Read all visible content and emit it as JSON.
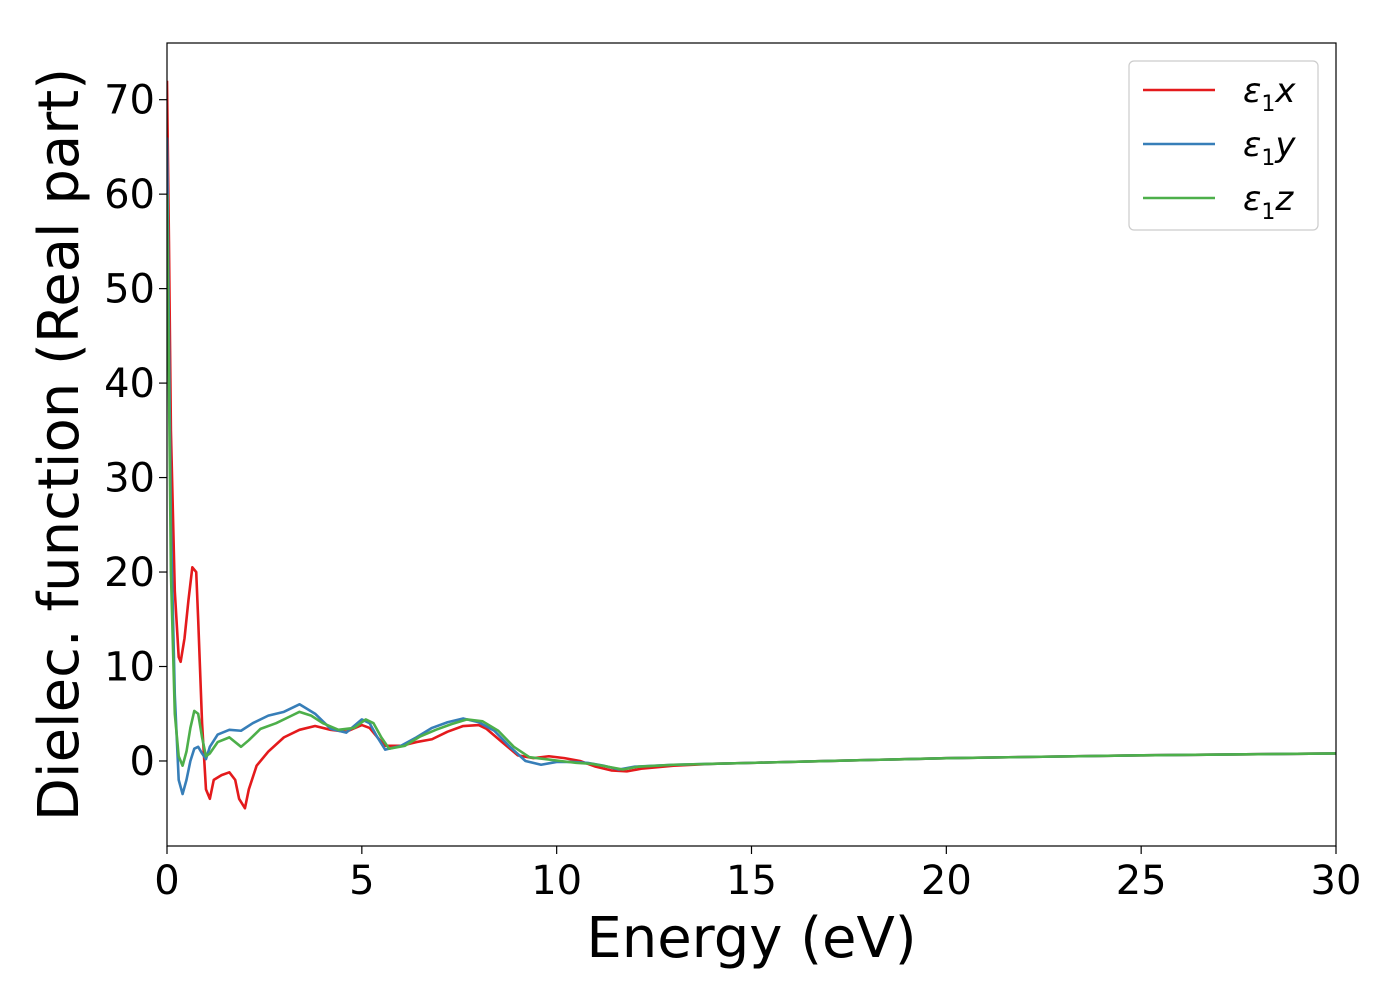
{
  "chart_data": {
    "type": "line",
    "title": "",
    "xlabel": "Energy (eV)",
    "ylabel": "Dielec. function (Real part)",
    "xlim": [
      0,
      30
    ],
    "ylim": [
      -9,
      76
    ],
    "xticks": [
      0,
      5,
      10,
      15,
      20,
      25,
      30
    ],
    "yticks": [
      0,
      10,
      20,
      30,
      40,
      50,
      60,
      70
    ],
    "grid": false,
    "legend_position": "top-right",
    "series": [
      {
        "name": "ε1x",
        "legend": {
          "base": "ε",
          "sub": "1",
          "suffix": "x"
        },
        "color": "#e41a1c",
        "x": [
          0.0,
          0.05,
          0.1,
          0.2,
          0.3,
          0.35,
          0.45,
          0.55,
          0.65,
          0.75,
          0.8,
          0.9,
          1.0,
          1.1,
          1.2,
          1.4,
          1.6,
          1.75,
          1.85,
          2.0,
          2.1,
          2.3,
          2.6,
          3.0,
          3.4,
          3.8,
          4.2,
          4.6,
          5.0,
          5.2,
          5.4,
          5.6,
          6.0,
          6.4,
          6.8,
          7.2,
          7.6,
          8.0,
          8.2,
          8.6,
          9.0,
          9.4,
          9.8,
          10.2,
          10.6,
          11.0,
          11.4,
          11.8,
          12.2,
          13.0,
          14.0,
          15.0,
          17.0,
          20.0,
          25.0,
          30.0
        ],
        "y": [
          72,
          55,
          35,
          18,
          11,
          10.5,
          13,
          17,
          20.5,
          20,
          15,
          4,
          -3,
          -4,
          -2,
          -1.5,
          -1.2,
          -2,
          -4,
          -5,
          -3,
          -0.5,
          1,
          2.5,
          3.3,
          3.7,
          3.3,
          3.1,
          3.8,
          3.5,
          2.5,
          1.6,
          1.6,
          2.0,
          2.3,
          3.1,
          3.7,
          3.8,
          3.4,
          2.0,
          0.6,
          0.3,
          0.5,
          0.3,
          0.0,
          -0.6,
          -1.0,
          -1.1,
          -0.8,
          -0.5,
          -0.3,
          -0.2,
          0.0,
          0.3,
          0.6,
          0.8
        ]
      },
      {
        "name": "ε1y",
        "legend": {
          "base": "ε",
          "sub": "1",
          "suffix": "y"
        },
        "color": "#377eb8",
        "x": [
          0.0,
          0.05,
          0.1,
          0.2,
          0.3,
          0.4,
          0.5,
          0.6,
          0.7,
          0.8,
          0.9,
          1.0,
          1.1,
          1.3,
          1.6,
          1.9,
          2.2,
          2.6,
          3.0,
          3.4,
          3.6,
          3.8,
          4.2,
          4.6,
          5.0,
          5.2,
          5.4,
          5.6,
          6.0,
          6.4,
          6.8,
          7.2,
          7.6,
          8.0,
          8.4,
          8.8,
          9.2,
          9.6,
          10.0,
          10.4,
          10.8,
          11.2,
          11.6,
          12.0,
          13.0,
          14.0,
          15.0,
          17.0,
          20.0,
          25.0,
          30.0
        ],
        "y": [
          66,
          45,
          25,
          7,
          -2,
          -3.5,
          -2,
          0,
          1.3,
          1.5,
          0.8,
          0.2,
          1.5,
          2.8,
          3.3,
          3.2,
          4.0,
          4.8,
          5.2,
          6.0,
          5.5,
          5.0,
          3.4,
          3.0,
          4.4,
          4.0,
          2.5,
          1.2,
          1.6,
          2.5,
          3.5,
          4.1,
          4.5,
          4.1,
          3.2,
          1.5,
          0.0,
          -0.4,
          -0.1,
          -0.1,
          -0.2,
          -0.5,
          -0.9,
          -0.6,
          -0.4,
          -0.3,
          -0.2,
          0.0,
          0.3,
          0.6,
          0.8
        ]
      },
      {
        "name": "ε1z",
        "legend": {
          "base": "ε",
          "sub": "1",
          "suffix": "z"
        },
        "color": "#4daf4a",
        "x": [
          0.0,
          0.05,
          0.1,
          0.2,
          0.3,
          0.4,
          0.5,
          0.6,
          0.7,
          0.8,
          0.9,
          1.0,
          1.1,
          1.3,
          1.6,
          1.9,
          2.1,
          2.4,
          2.8,
          3.2,
          3.4,
          3.7,
          4.0,
          4.4,
          4.8,
          5.1,
          5.3,
          5.5,
          5.7,
          6.1,
          6.5,
          6.9,
          7.3,
          7.7,
          8.1,
          8.5,
          8.9,
          9.3,
          9.7,
          10.1,
          10.5,
          10.9,
          11.3,
          11.7,
          12.1,
          13.0,
          14.0,
          15.0,
          17.0,
          20.0,
          25.0,
          30.0
        ],
        "y": [
          60,
          40,
          20,
          5,
          0.5,
          -0.5,
          1,
          3.5,
          5.3,
          5.0,
          2.5,
          0.5,
          0.8,
          2.0,
          2.5,
          1.5,
          2.2,
          3.4,
          4.0,
          4.8,
          5.2,
          4.8,
          4.0,
          3.3,
          3.5,
          4.4,
          4.0,
          2.5,
          1.3,
          1.6,
          2.6,
          3.3,
          3.9,
          4.4,
          4.2,
          3.2,
          1.5,
          0.4,
          0.2,
          0.0,
          -0.2,
          -0.3,
          -0.6,
          -0.9,
          -0.6,
          -0.4,
          -0.3,
          -0.2,
          0.0,
          0.3,
          0.6,
          0.8
        ]
      }
    ]
  }
}
